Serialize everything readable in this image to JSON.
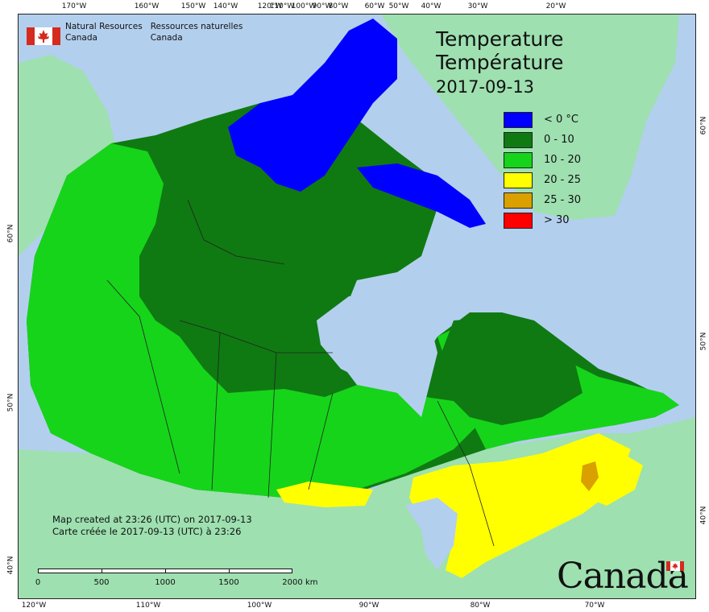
{
  "header": {
    "org_en": [
      "Natural Resources",
      "Canada"
    ],
    "org_fr": [
      "Ressources naturelles",
      "Canada"
    ]
  },
  "title": {
    "en": "Temperature",
    "fr": "Température",
    "date": "2017-09-13"
  },
  "legend": [
    {
      "label": "< 0 °C",
      "color": "#0000ff"
    },
    {
      "label": "0 - 10",
      "color": "#0f7a12"
    },
    {
      "label": "10 - 20",
      "color": "#16d41a"
    },
    {
      "label": "20 - 25",
      "color": "#ffff00"
    },
    {
      "label": "25 - 30",
      "color": "#d9a000"
    },
    {
      "label": "> 30",
      "color": "#ff0000"
    }
  ],
  "credit": {
    "en": "Map created at 23:26 (UTC) on 2017-09-13",
    "fr": "Carte créée le 2017-09-13 (UTC) à 23:26"
  },
  "scale": {
    "labels": [
      "0",
      "500",
      "1000",
      "1500",
      "2000"
    ],
    "unit": "km"
  },
  "ticks": {
    "top": [
      "170°W",
      "160°W",
      "150°W",
      "140°W",
      "120°W",
      "110°W",
      "100°W",
      "90°W",
      "80°W",
      "60°W",
      "50°W",
      "40°W",
      "30°W",
      "20°W"
    ],
    "bottom": [
      "120°W",
      "110°W",
      "100°W",
      "90°W",
      "80°W",
      "70°W"
    ],
    "left": [
      "60°N",
      "50°N",
      "40°N"
    ],
    "right": [
      "60°N",
      "50°N",
      "40°N"
    ]
  },
  "wordmark": "Canada",
  "colors": {
    "ocean": "#b3cfee",
    "land_other": "#9ee0b0"
  }
}
